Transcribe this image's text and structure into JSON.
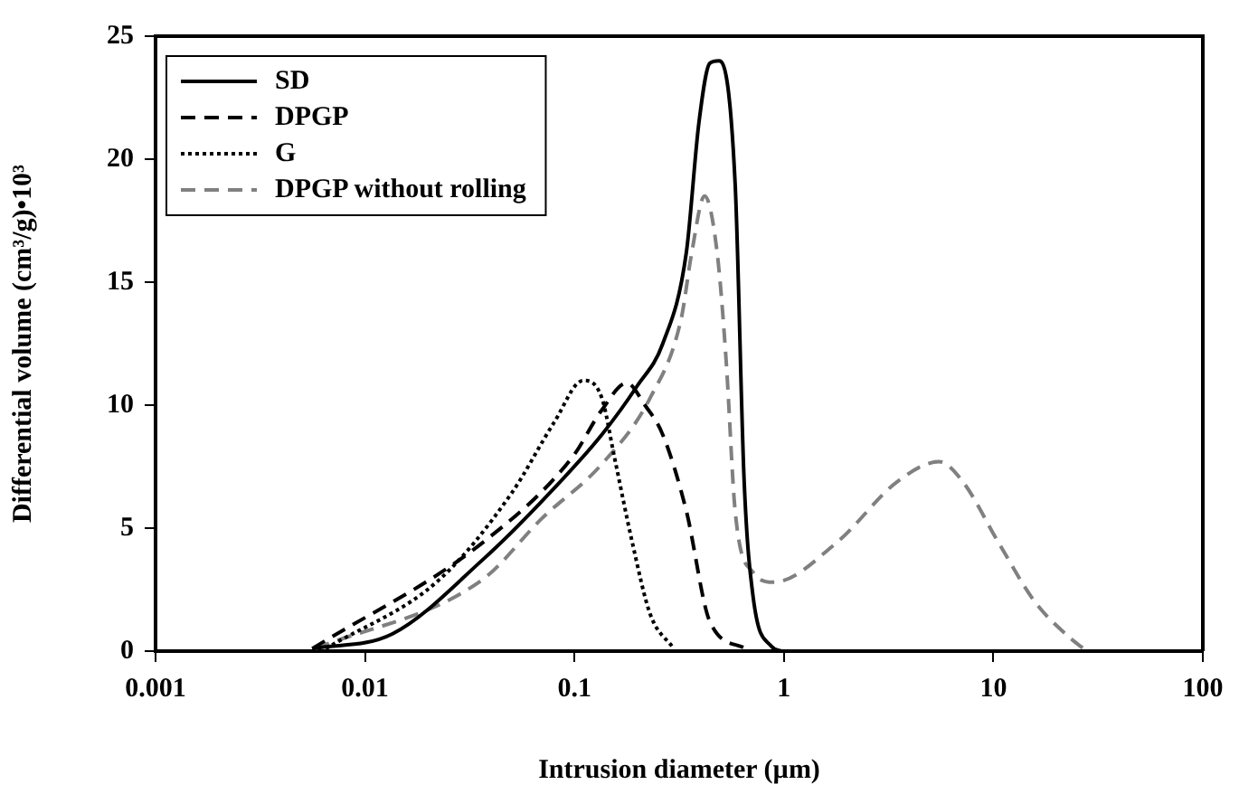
{
  "chart_data": {
    "type": "line",
    "xlabel": "Intrusion diameter (µm)",
    "ylabel": "Differential volume (cm³/g)•10³",
    "xlim": [
      0.001,
      100
    ],
    "xticks": [
      0.001,
      0.01,
      0.1,
      1,
      10,
      100
    ],
    "log": "x",
    "ylim": [
      0,
      25
    ],
    "yticks": [
      0,
      5,
      10,
      15,
      20,
      25
    ],
    "grid": false,
    "legend": "top left",
    "marker": "none",
    "series": [
      {
        "name": "SD",
        "color": "#000000",
        "line_style": "solid",
        "x": [
          0.0056,
          0.0135,
          0.0363,
          0.07,
          0.135,
          0.2,
          0.264,
          0.342,
          0.393,
          0.443,
          0.49,
          0.585,
          0.646,
          0.713,
          0.87,
          0.98
        ],
        "values": [
          0.1,
          0.7,
          3.7,
          6.1,
          8.8,
          10.8,
          12.5,
          16.2,
          21.5,
          23.9,
          24,
          19,
          6.9,
          2.2,
          0.2,
          0
        ]
      },
      {
        "name": "DPGP",
        "color": "#000000",
        "line_style": "dashed",
        "x": [
          0.0056,
          0.0363,
          0.098,
          0.135,
          0.178,
          0.217,
          0.264,
          0.342,
          0.443,
          0.659,
          0.686
        ],
        "values": [
          0.1,
          4.4,
          7.9,
          9.8,
          10.9,
          10,
          8.8,
          5.7,
          1.2,
          0.1,
          0
        ]
      },
      {
        "name": "G",
        "color": "#000000",
        "line_style": "dotted",
        "x": [
          0.0065,
          0.0226,
          0.0499,
          0.08,
          0.11,
          0.135,
          0.155,
          0.189,
          0.23,
          0.298
        ],
        "values": [
          0.1,
          2.9,
          6.4,
          9.3,
          11,
          10.3,
          7.9,
          4.4,
          1.5,
          0.1
        ]
      },
      {
        "name": "DPGP without rolling",
        "color": "#808080",
        "line_style": "dashed",
        "x": [
          0.0058,
          0.0363,
          0.07,
          0.135,
          0.23,
          0.323,
          0.363,
          0.418,
          0.48,
          0.53,
          0.585,
          0.713,
          0.888,
          1.78,
          3.49,
          5.51,
          7.13,
          10.6,
          15.8,
          23.5,
          27
        ],
        "values": [
          0.1,
          2.9,
          5.4,
          7.6,
          10.3,
          13.5,
          16.2,
          18.5,
          16.2,
          11.8,
          5.7,
          3.2,
          2.8,
          4.4,
          6.9,
          7.7,
          6.9,
          4.4,
          2,
          0.5,
          0.1
        ]
      }
    ]
  }
}
